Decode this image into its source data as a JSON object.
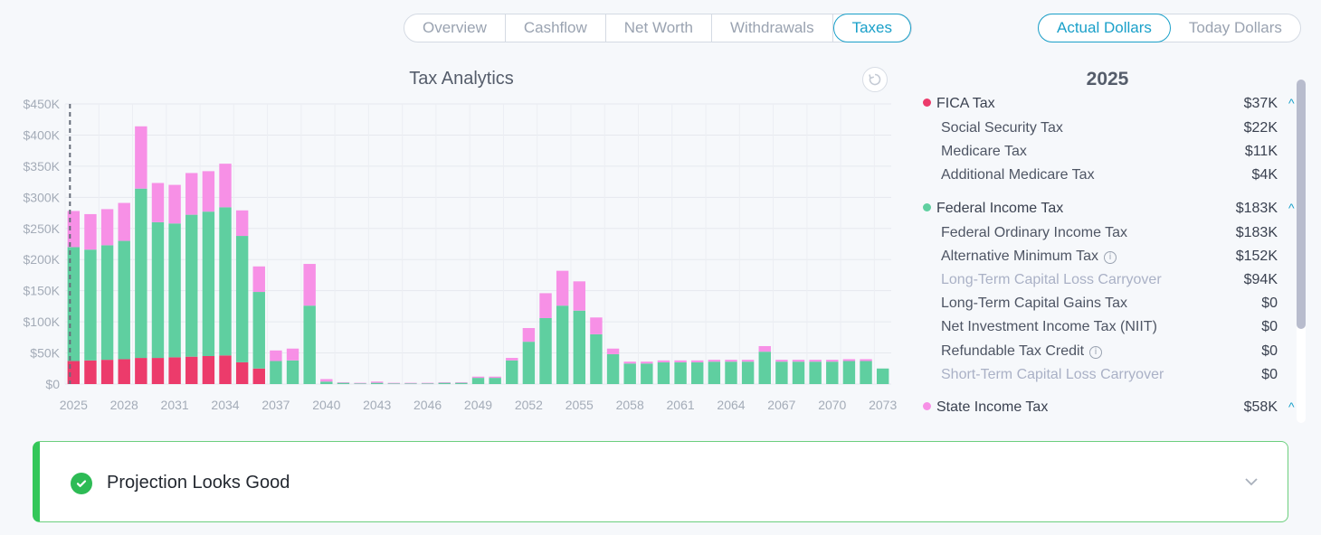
{
  "tabs": [
    "Overview",
    "Cashflow",
    "Net Worth",
    "Withdrawals",
    "Taxes"
  ],
  "active_tab": "Taxes",
  "dollar_modes": [
    "Actual Dollars",
    "Today Dollars"
  ],
  "active_dollar_mode": "Actual Dollars",
  "chart": {
    "title": "Tax Analytics",
    "reset_icon": "reset-icon"
  },
  "colors": {
    "fica": "#ec3b6b",
    "federal": "#5fcfa0",
    "state": "#f790e6",
    "accent": "#1aa0c9",
    "success": "#2dbb55"
  },
  "chart_data": {
    "type": "bar",
    "stacked": true,
    "ylim": [
      0,
      450000
    ],
    "yticks": [
      "$0",
      "$50K",
      "$100K",
      "$150K",
      "$200K",
      "$250K",
      "$300K",
      "$350K",
      "$400K",
      "$450K"
    ],
    "xticks": [
      "2025",
      "2028",
      "2031",
      "2034",
      "2037",
      "2040",
      "2043",
      "2046",
      "2049",
      "2052",
      "2055",
      "2058",
      "2061",
      "2064",
      "2067",
      "2070",
      "2073"
    ],
    "categories": [
      2025,
      2026,
      2027,
      2028,
      2029,
      2030,
      2031,
      2032,
      2033,
      2034,
      2035,
      2036,
      2037,
      2038,
      2039,
      2040,
      2041,
      2042,
      2043,
      2044,
      2045,
      2046,
      2047,
      2048,
      2049,
      2050,
      2051,
      2052,
      2053,
      2054,
      2055,
      2056,
      2057,
      2058,
      2059,
      2060,
      2061,
      2062,
      2063,
      2064,
      2065,
      2066,
      2067,
      2068,
      2069,
      2070,
      2071,
      2072,
      2073
    ],
    "series": [
      {
        "name": "FICA Tax",
        "values": [
          37000,
          38000,
          39000,
          40000,
          42000,
          42000,
          43000,
          44000,
          45000,
          46000,
          35000,
          25000,
          0,
          0,
          0,
          0,
          0,
          0,
          0,
          0,
          0,
          0,
          0,
          0,
          0,
          0,
          0,
          0,
          0,
          0,
          0,
          0,
          0,
          0,
          0,
          0,
          0,
          0,
          0,
          0,
          0,
          0,
          0,
          0,
          0,
          0,
          0,
          0,
          0
        ]
      },
      {
        "name": "Federal Income Tax",
        "values": [
          183000,
          178000,
          184000,
          190000,
          272000,
          218000,
          215000,
          228000,
          232000,
          238000,
          203000,
          123000,
          37000,
          38000,
          126000,
          4000,
          2000,
          1000,
          2000,
          1000,
          1000,
          1000,
          2000,
          2000,
          10000,
          10000,
          38000,
          68000,
          106000,
          126000,
          118000,
          80000,
          48000,
          33000,
          33000,
          35000,
          35000,
          35000,
          36000,
          36000,
          36000,
          52000,
          36000,
          36000,
          36000,
          36000,
          37000,
          37000,
          25000
        ]
      },
      {
        "name": "State Income Tax",
        "values": [
          58000,
          57000,
          58000,
          61000,
          100000,
          63000,
          62000,
          67000,
          65000,
          70000,
          41000,
          41000,
          17000,
          19000,
          67000,
          4000,
          1000,
          1000,
          2000,
          1000,
          1000,
          1000,
          1000,
          1000,
          2000,
          2000,
          4000,
          22000,
          40000,
          56000,
          47000,
          27000,
          9000,
          3000,
          3000,
          3000,
          3000,
          3000,
          3000,
          3000,
          3000,
          9000,
          3000,
          3000,
          3000,
          3000,
          3000,
          3000,
          0
        ]
      }
    ],
    "current_year_marker": 2025,
    "grid": true
  },
  "panel": {
    "year": "2025",
    "groups": [
      {
        "label": "FICA Tax",
        "value": "$37K",
        "color": "#ec3b6b",
        "items": [
          {
            "label": "Social Security Tax",
            "value": "$22K",
            "muted": false,
            "info": false
          },
          {
            "label": "Medicare Tax",
            "value": "$11K",
            "muted": false,
            "info": false
          },
          {
            "label": "Additional Medicare Tax",
            "value": "$4K",
            "muted": false,
            "info": false
          }
        ]
      },
      {
        "label": "Federal Income Tax",
        "value": "$183K",
        "color": "#5fcfa0",
        "items": [
          {
            "label": "Federal Ordinary Income Tax",
            "value": "$183K",
            "muted": false,
            "info": false
          },
          {
            "label": "Alternative Minimum Tax",
            "value": "$152K",
            "muted": false,
            "info": true
          },
          {
            "label": "Long-Term Capital Loss Carryover",
            "value": "$94K",
            "muted": true,
            "info": false
          },
          {
            "label": "Long-Term Capital Gains Tax",
            "value": "$0",
            "muted": false,
            "info": false
          },
          {
            "label": "Net Investment Income Tax (NIIT)",
            "value": "$0",
            "muted": false,
            "info": false
          },
          {
            "label": "Refundable Tax Credit",
            "value": "$0",
            "muted": false,
            "info": true
          },
          {
            "label": "Short-Term Capital Loss Carryover",
            "value": "$0",
            "muted": true,
            "info": false
          }
        ]
      },
      {
        "label": "State Income Tax",
        "value": "$58K",
        "color": "#f790e6",
        "items": []
      }
    ],
    "caret": "^",
    "info_glyph": "i"
  },
  "status": {
    "message": "Projection Looks Good",
    "icon": "check-circle-icon",
    "expand_icon": "chevron-down-icon"
  }
}
